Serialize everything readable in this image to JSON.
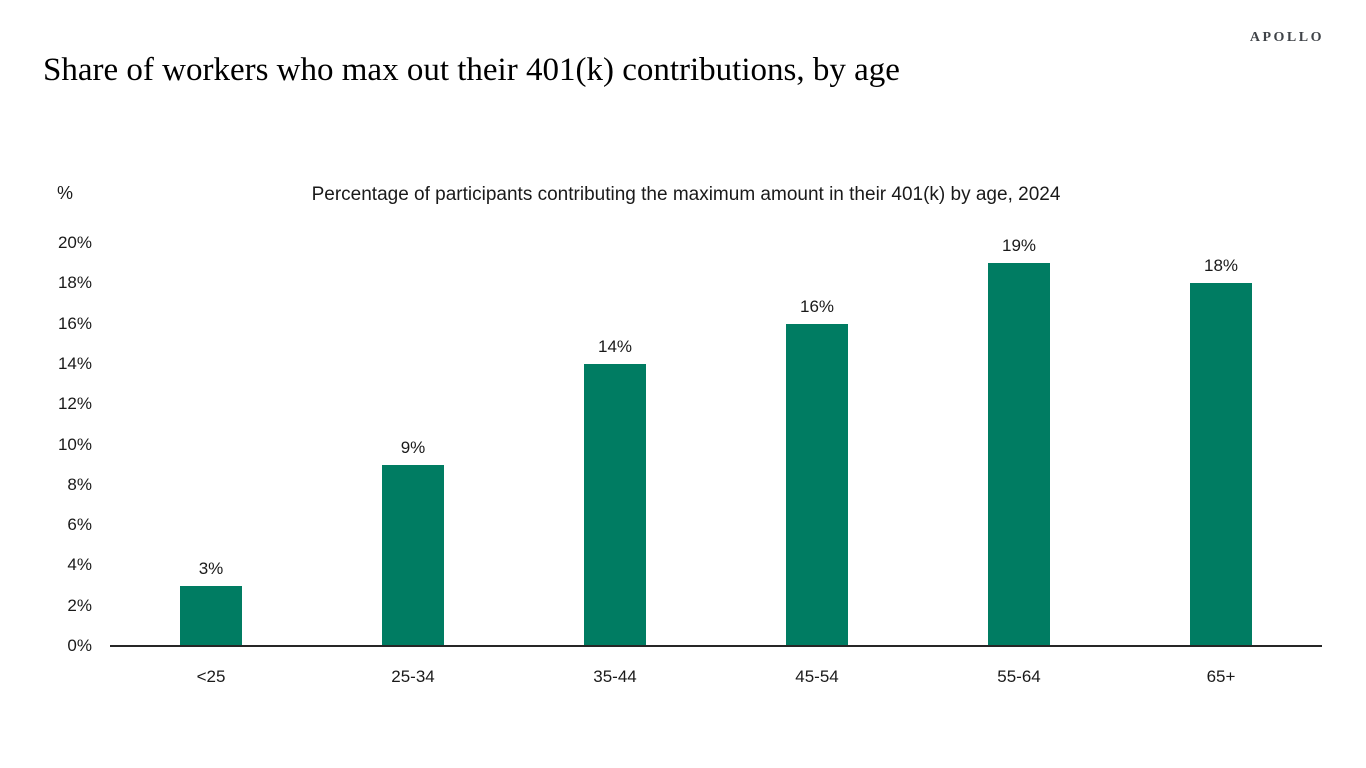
{
  "header": {
    "logo": "APOLLO",
    "title": "Share of workers who max out their 401(k) contributions, by age"
  },
  "chart_data": {
    "type": "bar",
    "title": "Percentage of participants contributing the maximum amount in their 401(k) by age, 2024",
    "unit_label": "%",
    "categories": [
      "<25",
      "25-34",
      "35-44",
      "45-54",
      "55-64",
      "65+"
    ],
    "values": [
      3,
      9,
      14,
      16,
      19,
      18
    ],
    "value_labels": [
      "3%",
      "9%",
      "14%",
      "16%",
      "19%",
      "18%"
    ],
    "ylim": [
      0,
      20
    ],
    "ytick_step": 2,
    "ytick_labels": [
      "0%",
      "2%",
      "4%",
      "6%",
      "8%",
      "10%",
      "12%",
      "14%",
      "16%",
      "18%",
      "20%"
    ],
    "bar_color": "#007C62",
    "axis_color": "#262626",
    "text_color": "#1a1a1a",
    "grid": false,
    "legend": false
  }
}
